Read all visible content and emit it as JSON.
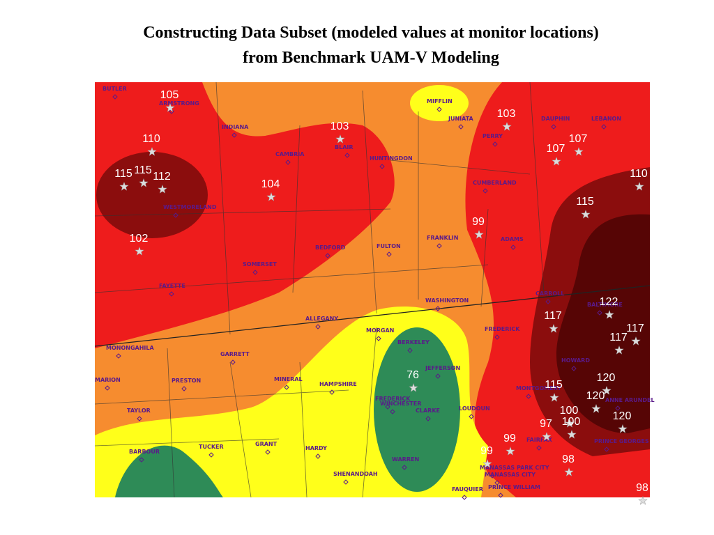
{
  "title": {
    "line1": "Constructing Data Subset (modeled values at monitor locations)",
    "line2": "from Benchmark UAM-V Modeling"
  },
  "counties": [
    "BUTLER",
    "ARMSTRONG",
    "INDIANA",
    "CAMBRIA",
    "BLAIR",
    "HUNTINGDON",
    "MIFFLIN",
    "JUNIATA",
    "PERRY",
    "DAUPHIN",
    "LEBANON",
    "CUMBERLAND",
    "WESTMORELAND",
    "FRANKLIN",
    "ADAMS",
    "BEDFORD",
    "FULTON",
    "SOMERSET",
    "FAYETTE",
    "WASHINGTON",
    "ALLEGANY",
    "MORGAN",
    "FREDERICK",
    "BERKELEY",
    "JEFFERSON",
    "MONONGAHILA",
    "GARRETT",
    "MARION",
    "PRESTON",
    "MINERAL",
    "HAMPSHIRE",
    "FREDERICK",
    "WINCHESTER",
    "CLARKE",
    "LOUDOUN",
    "TAYLOR",
    "BARBOUR",
    "TUCKER",
    "GRANT",
    "HARDY",
    "SHENANDOAH",
    "WARREN",
    "FAUQUIER",
    "PRINCE WILLIAM",
    "MANASSAS PARK CITY",
    "MANASSAS CITY",
    "CARROLL",
    "BALTIMORE",
    "HOWARD",
    "MONTGOMERY",
    "ANNE ARUNDEL",
    "PRINCE GEORGES",
    "FAIRFAX"
  ],
  "monitors": [
    105,
    110,
    115,
    115,
    112,
    104,
    102,
    103,
    103,
    107,
    107,
    110,
    115,
    99,
    122,
    117,
    117,
    117,
    120,
    115,
    76,
    120,
    100,
    120,
    97,
    100,
    99,
    99,
    98,
    98
  ]
}
